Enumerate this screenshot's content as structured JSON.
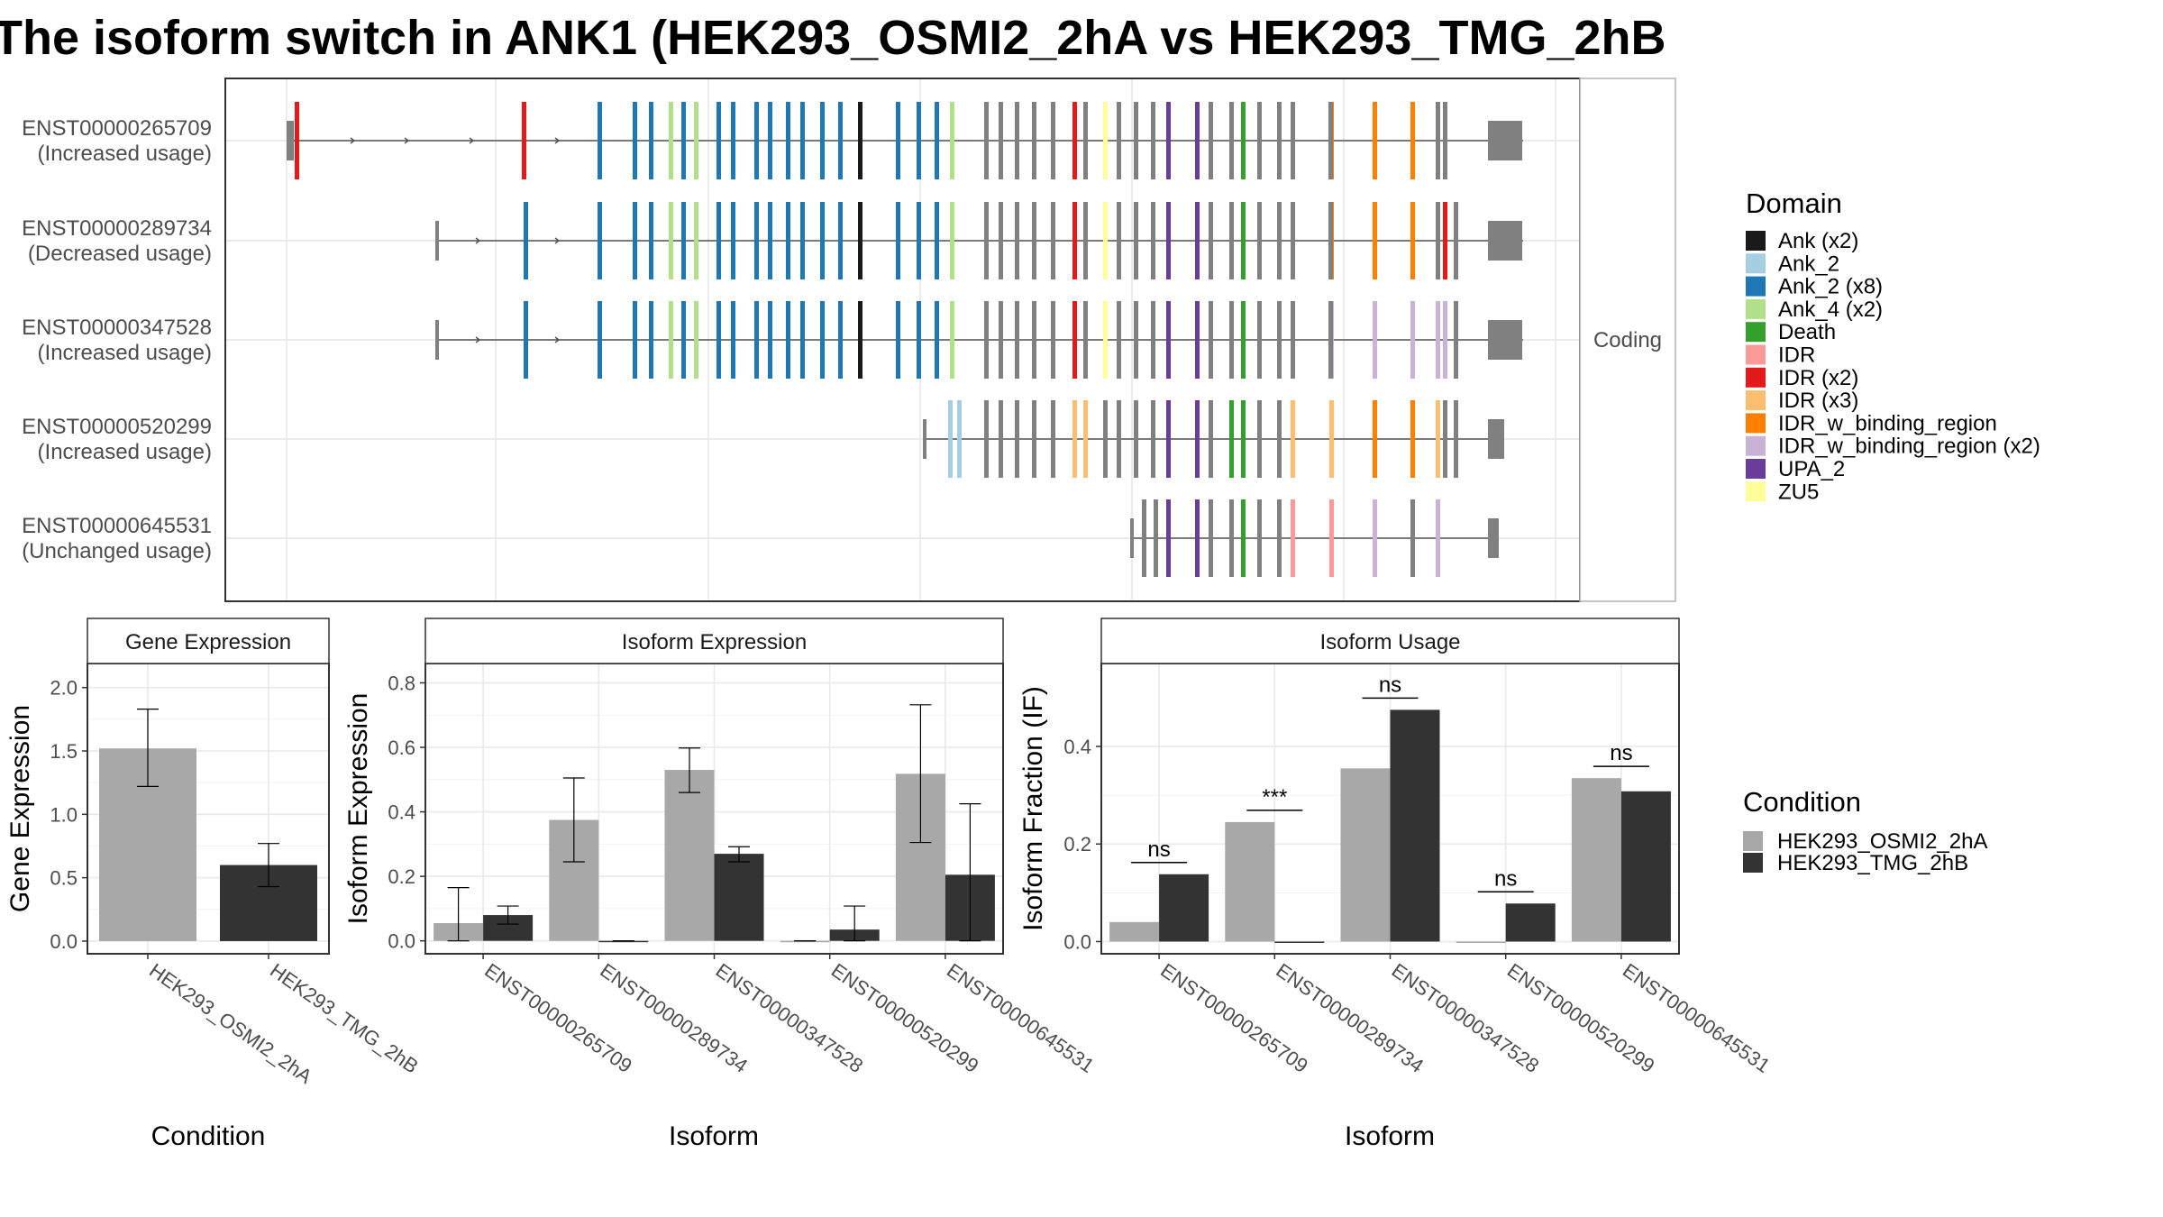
{
  "title": "The isoform switch in ANK1 (HEK293_OSMI2_2hA vs HEK293_TMG_2hB",
  "colors": {
    "HEK293_OSMI2_2hA": "#a8a8a8",
    "HEK293_TMG_2hB": "#333333",
    "intron": "#555555",
    "exon": "#808080"
  },
  "structure": {
    "facet_label": "Coding",
    "transcripts": [
      {
        "id": "ENST00000265709",
        "usage": "(Increased usage)"
      },
      {
        "id": "ENST00000289734",
        "usage": "(Decreased usage)"
      },
      {
        "id": "ENST00000347528",
        "usage": "(Increased usage)"
      },
      {
        "id": "ENST00000520299",
        "usage": "(Increased usage)"
      },
      {
        "id": "ENST00000645531",
        "usage": "(Unchanged usage)"
      }
    ]
  },
  "domain_legend": {
    "title": "Domain",
    "entries": [
      {
        "label": "Ank (x2)",
        "color": "#1a1a1a"
      },
      {
        "label": "Ank_2",
        "color": "#a6cee3"
      },
      {
        "label": "Ank_2 (x8)",
        "color": "#1f78b4"
      },
      {
        "label": "Ank_4 (x2)",
        "color": "#b2df8a"
      },
      {
        "label": "Death",
        "color": "#33a02c"
      },
      {
        "label": "IDR",
        "color": "#fb9a99"
      },
      {
        "label": "IDR (x2)",
        "color": "#e31a1c"
      },
      {
        "label": "IDR (x3)",
        "color": "#fdbf6f"
      },
      {
        "label": "IDR_w_binding_region",
        "color": "#ff7f00"
      },
      {
        "label": "IDR_w_binding_region (x2)",
        "color": "#cab2d6"
      },
      {
        "label": "UPA_2",
        "color": "#6a3d9a"
      },
      {
        "label": "ZU5",
        "color": "#ffff99"
      }
    ]
  },
  "condition_legend": {
    "title": "Condition",
    "entries": [
      "HEK293_OSMI2_2hA",
      "HEK293_TMG_2hB"
    ]
  },
  "chart_data": [
    {
      "type": "bar",
      "panel": "Gene Expression",
      "xlabel": "Condition",
      "ylabel": "Gene Expression",
      "categories": [
        "HEK293_OSMI2_2hA",
        "HEK293_TMG_2hB"
      ],
      "values": [
        1.52,
        0.6
      ],
      "error_low": [
        1.22,
        0.43
      ],
      "error_high": [
        1.83,
        0.77
      ],
      "ylim": [
        -0.1,
        2.19
      ],
      "yticks": [
        0.0,
        0.5,
        1.0,
        1.5,
        2.0
      ],
      "ytick_labels": [
        "0.0",
        "0.5",
        "1.0",
        "1.5",
        "2.0"
      ],
      "grid": true
    },
    {
      "type": "bar",
      "panel": "Isoform Expression",
      "xlabel": "Isoform",
      "ylabel": "Isoform Expression",
      "categories": [
        "ENST00000265709",
        "ENST00000289734",
        "ENST00000347528",
        "ENST00000520299",
        "ENST00000645531"
      ],
      "series": [
        {
          "name": "HEK293_OSMI2_2hA",
          "values": [
            0.055,
            0.375,
            0.53,
            0.0,
            0.518
          ],
          "error_low": [
            0.0,
            0.245,
            0.46,
            0.0,
            0.305
          ],
          "error_high": [
            0.165,
            0.505,
            0.598,
            0.0,
            0.732
          ]
        },
        {
          "name": "HEK293_TMG_2hB",
          "values": [
            0.08,
            0.0,
            0.27,
            0.035,
            0.205
          ],
          "error_low": [
            0.052,
            0.0,
            0.245,
            0.0,
            0.0
          ],
          "error_high": [
            0.108,
            0.0,
            0.292,
            0.108,
            0.425
          ]
        }
      ],
      "ylim": [
        -0.04,
        0.86
      ],
      "yticks": [
        0.0,
        0.2,
        0.4,
        0.6,
        0.8
      ],
      "ytick_labels": [
        "0.0",
        "0.2",
        "0.4",
        "0.6",
        "0.8"
      ],
      "grid": true
    },
    {
      "type": "bar",
      "panel": "Isoform Usage",
      "xlabel": "Isoform",
      "ylabel": "Isoform Fraction (IF)",
      "categories": [
        "ENST00000265709",
        "ENST00000289734",
        "ENST00000347528",
        "ENST00000520299",
        "ENST00000645531"
      ],
      "series": [
        {
          "name": "HEK293_OSMI2_2hA",
          "values": [
            0.04,
            0.245,
            0.355,
            0.0,
            0.335
          ]
        },
        {
          "name": "HEK293_TMG_2hB",
          "values": [
            0.138,
            0.0,
            0.475,
            0.078,
            0.308
          ]
        }
      ],
      "significance": [
        "ns",
        "***",
        "ns",
        "ns",
        "ns"
      ],
      "ylim": [
        -0.025,
        0.57
      ],
      "yticks": [
        0.0,
        0.2,
        0.4
      ],
      "ytick_labels": [
        "0.0",
        "0.2",
        "0.4"
      ],
      "grid": true
    }
  ]
}
